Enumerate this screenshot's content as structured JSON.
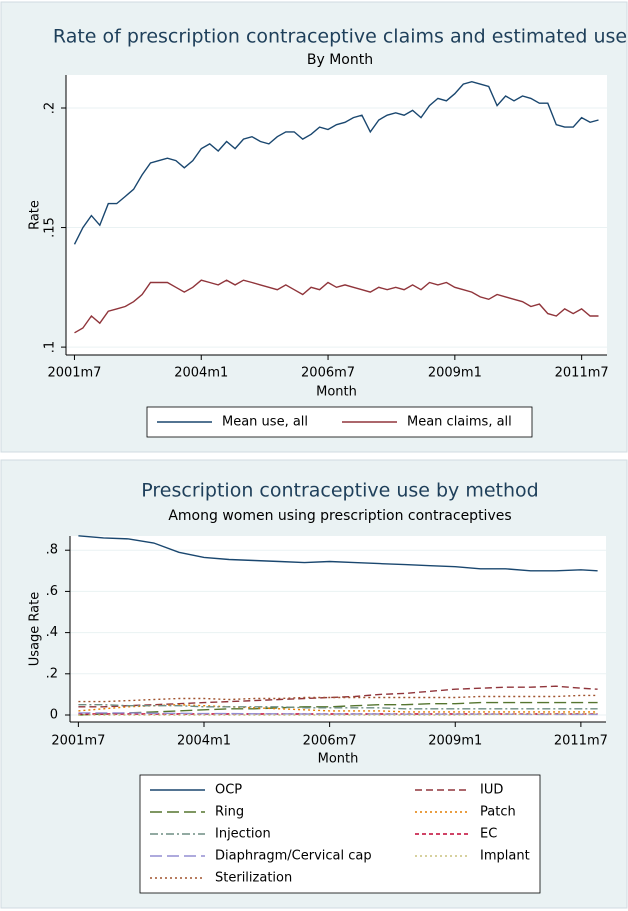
{
  "chart_data": [
    {
      "type": "line",
      "title": "Rate of prescription contraceptive claims and estimated use",
      "subtitle": "By Month",
      "y_label": "Rate",
      "x_label": "Month",
      "xlim": [
        496,
        624
      ],
      "xticks": [
        {
          "value": 498,
          "label": "2001m7"
        },
        {
          "value": 528,
          "label": "2004m1"
        },
        {
          "value": 558,
          "label": "2006m7"
        },
        {
          "value": 588,
          "label": "2009m1"
        },
        {
          "value": 618,
          "label": "2011m7"
        }
      ],
      "ylim": [
        0.0967,
        0.2138
      ],
      "yticks": [
        {
          "value": 0.1,
          "label": ".1"
        },
        {
          "value": 0.15,
          "label": ".15"
        },
        {
          "value": 0.2,
          "label": ".2"
        }
      ],
      "grid": true,
      "legend": "bottom",
      "x": [
        498,
        500,
        502,
        504,
        506,
        508,
        510,
        512,
        514,
        516,
        518,
        520,
        522,
        524,
        526,
        528,
        530,
        532,
        534,
        536,
        538,
        540,
        542,
        544,
        546,
        548,
        550,
        552,
        554,
        556,
        558,
        560,
        562,
        564,
        566,
        568,
        570,
        572,
        574,
        576,
        578,
        580,
        582,
        584,
        586,
        588,
        590,
        592,
        594,
        596,
        598,
        600,
        602,
        604,
        606,
        608,
        610,
        612,
        614,
        616,
        618,
        620,
        622
      ],
      "series": [
        {
          "name": "Mean use, all",
          "color": "#1a476f",
          "dash": "solid",
          "values": [
            0.143,
            0.15,
            0.155,
            0.151,
            0.16,
            0.16,
            0.163,
            0.166,
            0.172,
            0.177,
            0.178,
            0.179,
            0.178,
            0.175,
            0.178,
            0.183,
            0.185,
            0.182,
            0.186,
            0.183,
            0.187,
            0.188,
            0.186,
            0.185,
            0.188,
            0.19,
            0.19,
            0.187,
            0.189,
            0.192,
            0.191,
            0.193,
            0.194,
            0.196,
            0.197,
            0.19,
            0.195,
            0.197,
            0.198,
            0.197,
            0.199,
            0.196,
            0.201,
            0.204,
            0.203,
            0.206,
            0.21,
            0.211,
            0.21,
            0.209,
            0.201,
            0.205,
            0.203,
            0.205,
            0.204,
            0.202,
            0.202,
            0.193,
            0.192,
            0.192,
            0.196,
            0.194,
            0.195
          ]
        },
        {
          "name": "Mean claims, all",
          "color": "#90353b",
          "dash": "solid",
          "values": [
            0.106,
            0.108,
            0.113,
            0.11,
            0.115,
            0.116,
            0.117,
            0.119,
            0.122,
            0.127,
            0.127,
            0.127,
            0.125,
            0.123,
            0.125,
            0.128,
            0.127,
            0.126,
            0.128,
            0.126,
            0.128,
            0.127,
            0.126,
            0.125,
            0.124,
            0.126,
            0.124,
            0.122,
            0.125,
            0.124,
            0.127,
            0.125,
            0.126,
            0.125,
            0.124,
            0.123,
            0.125,
            0.124,
            0.125,
            0.124,
            0.126,
            0.124,
            0.127,
            0.126,
            0.127,
            0.125,
            0.124,
            0.123,
            0.121,
            0.12,
            0.122,
            0.121,
            0.12,
            0.119,
            0.117,
            0.118,
            0.114,
            0.113,
            0.116,
            0.114,
            0.116,
            0.113,
            0.113
          ]
        }
      ]
    },
    {
      "type": "line",
      "title": "Prescription contraceptive use by method",
      "subtitle": "Among women using prescription contraceptives",
      "y_label": "Usage Rate",
      "x_label": "Month",
      "xlim": [
        496,
        624
      ],
      "xticks": [
        {
          "value": 498,
          "label": "2001m7"
        },
        {
          "value": 528,
          "label": "2004m1"
        },
        {
          "value": 558,
          "label": "2006m7"
        },
        {
          "value": 588,
          "label": "2009m1"
        },
        {
          "value": 618,
          "label": "2011m7"
        }
      ],
      "ylim": [
        -0.034,
        0.869
      ],
      "yticks": [
        0,
        {
          "value": 0.2,
          "label": ".2"
        },
        {
          "value": 0.4,
          "label": ".4"
        },
        {
          "value": 0.6,
          "label": ".6"
        },
        {
          "value": 0.8,
          "label": ".8"
        }
      ],
      "grid": true,
      "legend": "bottom",
      "x": [
        498,
        504,
        510,
        516,
        522,
        528,
        534,
        540,
        546,
        552,
        558,
        564,
        570,
        576,
        582,
        588,
        594,
        600,
        606,
        612,
        618,
        622
      ],
      "series": [
        {
          "name": "OCP",
          "color": "#1a476f",
          "dash": "solid",
          "values": [
            0.87,
            0.86,
            0.855,
            0.835,
            0.79,
            0.765,
            0.755,
            0.75,
            0.745,
            0.74,
            0.745,
            0.74,
            0.735,
            0.73,
            0.725,
            0.72,
            0.71,
            0.71,
            0.7,
            0.7,
            0.705,
            0.7
          ]
        },
        {
          "name": "IUD",
          "color": "#90353b",
          "dash": "dash",
          "values": [
            0.04,
            0.04,
            0.045,
            0.05,
            0.055,
            0.06,
            0.065,
            0.07,
            0.075,
            0.08,
            0.085,
            0.09,
            0.1,
            0.105,
            0.115,
            0.125,
            0.13,
            0.135,
            0.135,
            0.14,
            0.13,
            0.125
          ]
        },
        {
          "name": "Ring",
          "color": "#55752f",
          "dash": "longdash",
          "values": [
            0.0,
            0.005,
            0.01,
            0.015,
            0.02,
            0.025,
            0.03,
            0.03,
            0.035,
            0.04,
            0.04,
            0.045,
            0.05,
            0.05,
            0.055,
            0.055,
            0.06,
            0.06,
            0.06,
            0.06,
            0.06,
            0.06
          ]
        },
        {
          "name": "Patch",
          "color": "#e37e00",
          "dash": "dot",
          "values": [
            0.02,
            0.03,
            0.04,
            0.045,
            0.05,
            0.045,
            0.04,
            0.035,
            0.03,
            0.025,
            0.02,
            0.02,
            0.02,
            0.015,
            0.015,
            0.015,
            0.015,
            0.015,
            0.015,
            0.015,
            0.015,
            0.015
          ]
        },
        {
          "name": "Injection",
          "color": "#6e8e84",
          "dash": "dashdot",
          "values": [
            0.05,
            0.05,
            0.045,
            0.045,
            0.045,
            0.04,
            0.04,
            0.04,
            0.04,
            0.035,
            0.035,
            0.035,
            0.035,
            0.03,
            0.03,
            0.03,
            0.03,
            0.03,
            0.03,
            0.03,
            0.03,
            0.03
          ]
        },
        {
          "name": "EC",
          "color": "#c10534",
          "dash": "shortdash",
          "values": [
            0.005,
            0.005,
            0.005,
            0.005,
            0.005,
            0.005,
            0.005,
            0.005,
            0.005,
            0.005,
            0.005,
            0.005,
            0.005,
            0.005,
            0.005,
            0.005,
            0.005,
            0.005,
            0.005,
            0.005,
            0.005,
            0.005
          ]
        },
        {
          "name": "Diaphragm/Cervical cap",
          "color": "#938dd2",
          "dash": "longdash",
          "values": [
            0.01,
            0.01,
            0.01,
            0.008,
            0.008,
            0.007,
            0.007,
            0.006,
            0.006,
            0.005,
            0.005,
            0.005,
            0.005,
            0.004,
            0.004,
            0.004,
            0.004,
            0.004,
            0.003,
            0.003,
            0.003,
            0.003
          ]
        },
        {
          "name": "Implant",
          "color": "#cac27e",
          "dash": "dot",
          "values": [
            0,
            0,
            0,
            0,
            0,
            0,
            0,
            0,
            0,
            0,
            0,
            0,
            0,
            0,
            0,
            0,
            0.002,
            0.003,
            0.004,
            0.005,
            0.006,
            0.007
          ]
        },
        {
          "name": "Sterilization",
          "color": "#a0522d",
          "dash": "dot",
          "values": [
            0.065,
            0.065,
            0.07,
            0.075,
            0.08,
            0.08,
            0.075,
            0.08,
            0.08,
            0.085,
            0.085,
            0.085,
            0.085,
            0.085,
            0.085,
            0.085,
            0.09,
            0.09,
            0.09,
            0.09,
            0.095,
            0.095
          ]
        }
      ]
    }
  ]
}
